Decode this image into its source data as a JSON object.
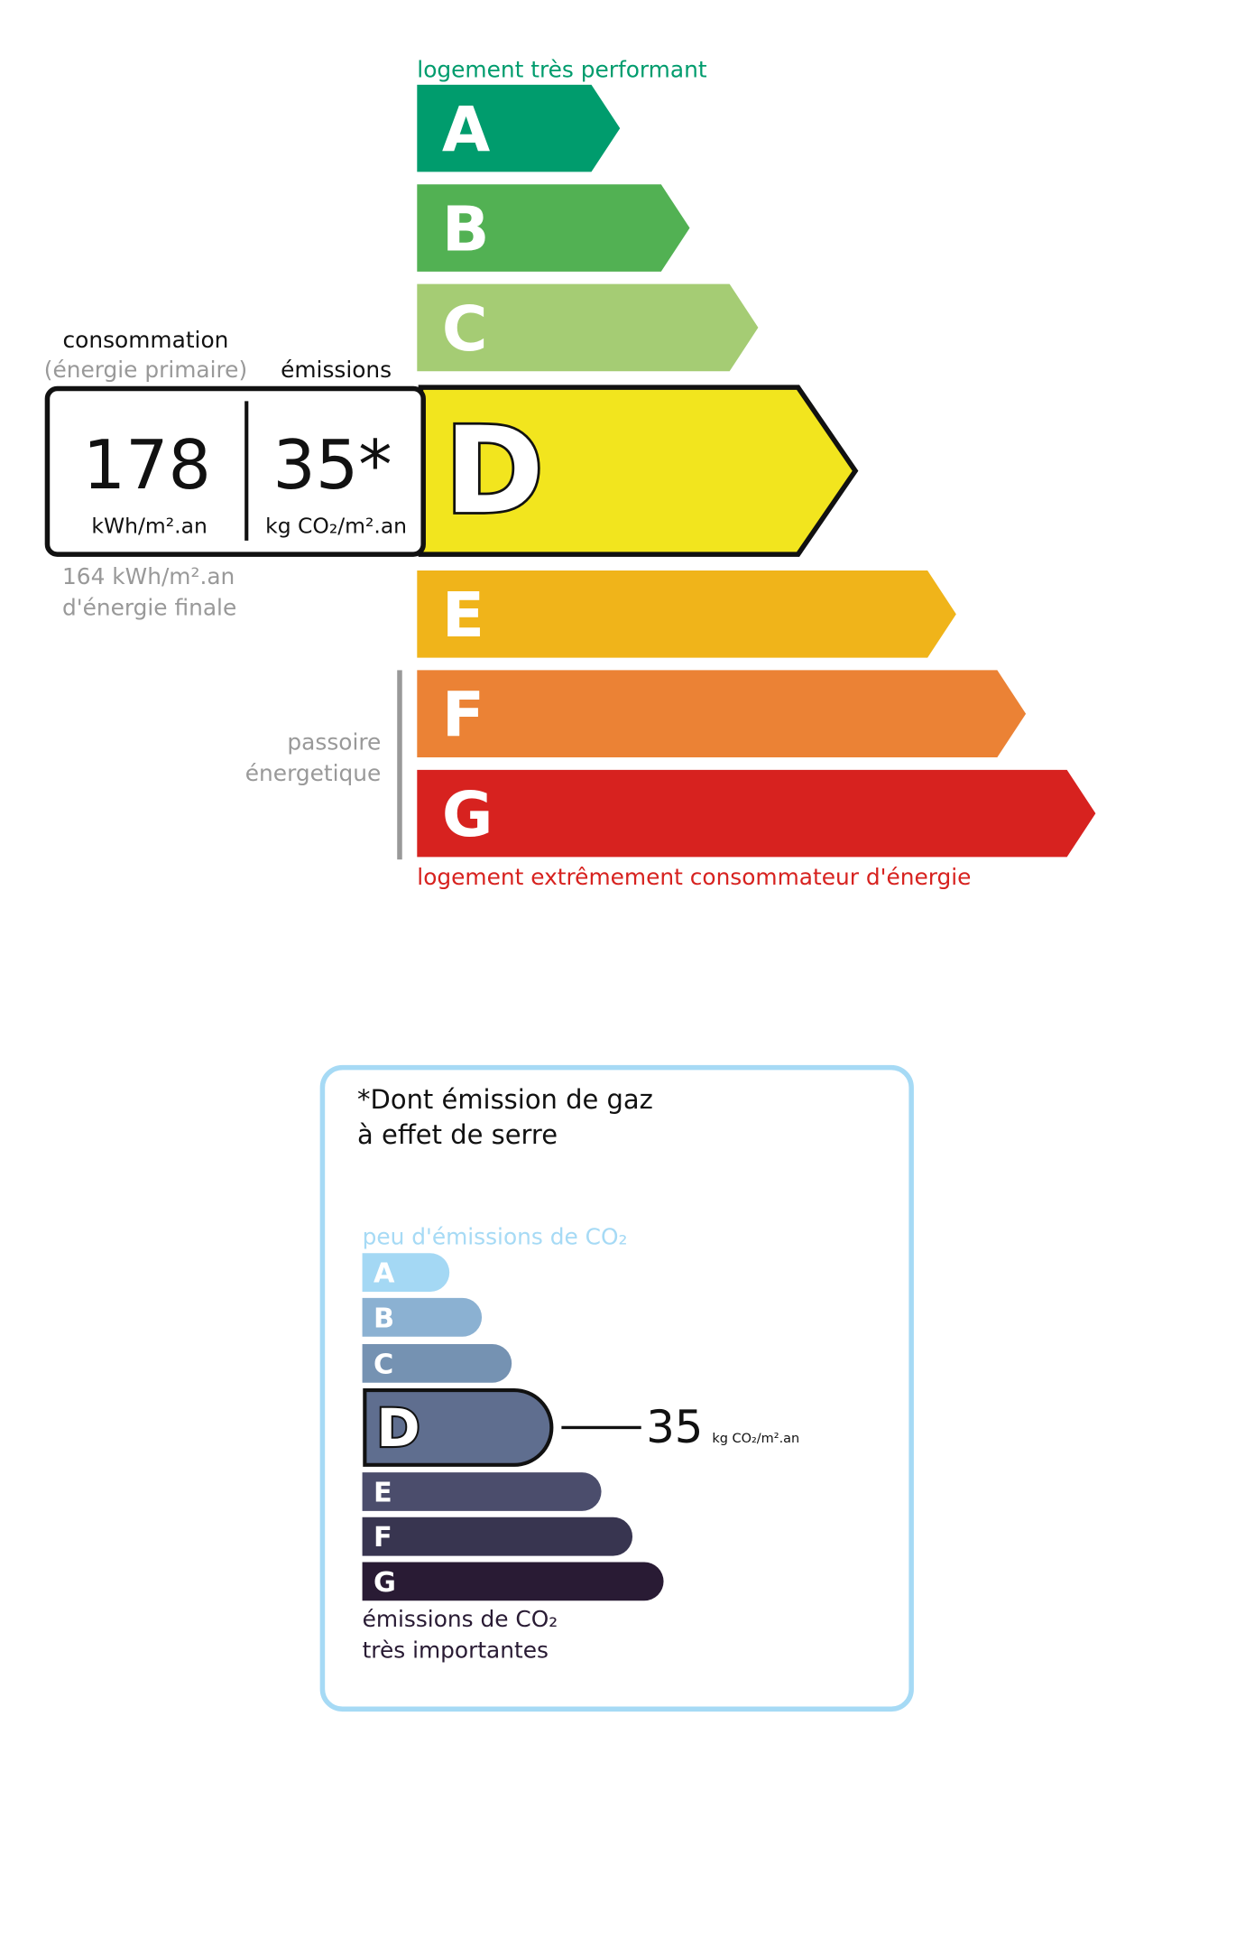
{
  "energy_label": {
    "top_caption": "logement très performant",
    "bottom_caption": "logement extrêmement consommateur d'énergie",
    "current_class": "D",
    "classes": [
      {
        "letter": "A",
        "color": "#009c6d"
      },
      {
        "letter": "B",
        "color": "#52b153"
      },
      {
        "letter": "C",
        "color": "#a5cc74"
      },
      {
        "letter": "D",
        "color": "#f2e51e"
      },
      {
        "letter": "E",
        "color": "#f0b41a"
      },
      {
        "letter": "F",
        "color": "#eb8235"
      },
      {
        "letter": "G",
        "color": "#d7221f"
      }
    ],
    "consumption_header": "consommation",
    "consumption_subheader": "(énergie primaire)",
    "emissions_header": "émissions",
    "consumption_value": "178",
    "consumption_unit": "kWh/m².an",
    "emissions_value": "35*",
    "emissions_unit": "kg CO₂/m².an",
    "final_energy_line1": "164 kWh/m².an",
    "final_energy_line2": "d'énergie finale",
    "passoire_line1": "passoire",
    "passoire_line2": "énergetique"
  },
  "ghg_label": {
    "title_line1": "*Dont émission de gaz",
    "title_line2": "à effet de serre",
    "top_caption": "peu d'émissions de CO₂",
    "bottom_caption_line1": "émissions de CO₂",
    "bottom_caption_line2": "très importantes",
    "current_class": "D",
    "value": "35",
    "unit": "kg CO₂/m².an",
    "border_color": "#a6daf5",
    "classes": [
      {
        "letter": "A",
        "color": "#a4d8f4"
      },
      {
        "letter": "B",
        "color": "#8bb1d2"
      },
      {
        "letter": "C",
        "color": "#7592b2"
      },
      {
        "letter": "D",
        "color": "#5f6e8f"
      },
      {
        "letter": "E",
        "color": "#4b4d6c"
      },
      {
        "letter": "F",
        "color": "#383550"
      },
      {
        "letter": "G",
        "color": "#291b34"
      }
    ]
  }
}
